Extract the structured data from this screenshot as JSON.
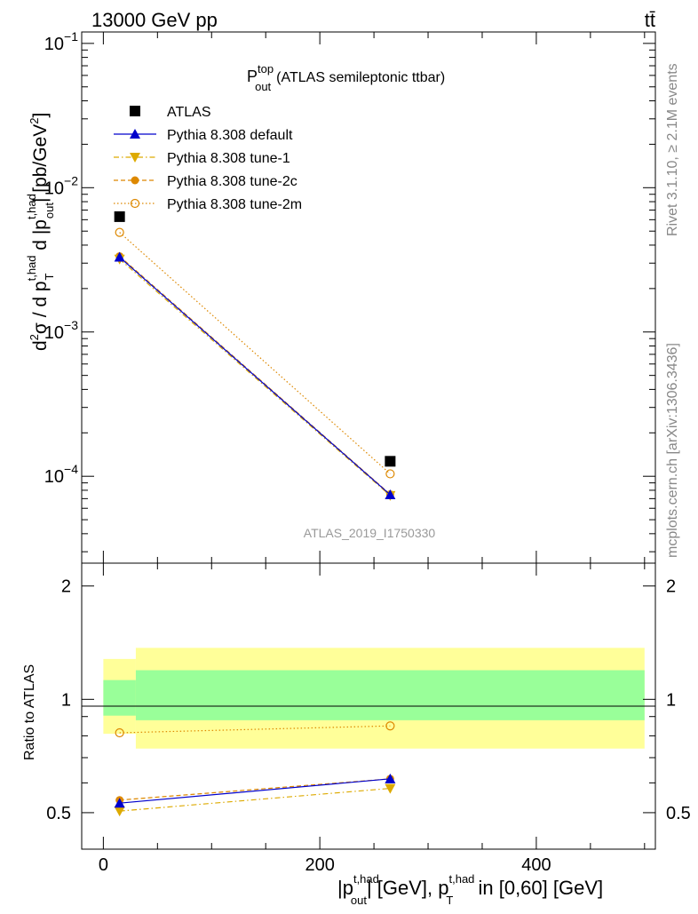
{
  "header": {
    "left": "13000 GeV pp",
    "right": "tt̄"
  },
  "plot_title": {
    "main": "P",
    "sup": "top",
    "sub": "out",
    "suffix": "(ATLAS semileptonic ttbar)"
  },
  "analysis_id": "ATLAS_2019_I1750330",
  "side_labels": {
    "rivet": "Rivet 3.1.10, ≥ 2.1M events",
    "mcplots": "mcplots.cern.ch [arXiv:1306.3436]"
  },
  "y_axis_main": {
    "part1": "d",
    "sq": "2",
    "part2": "σ / d p",
    "sup1": "t,had",
    "sub1": "T",
    "part3": " d |p",
    "sup2": "t,had",
    "sub2": "out",
    "part4": "| [pb/GeV",
    "sq2": "2",
    "part5": "]",
    "ticks": [
      {
        "base": "10",
        "exp": "−1",
        "v": 0.1
      },
      {
        "base": "10",
        "exp": "−2",
        "v": 0.01
      },
      {
        "base": "10",
        "exp": "−3",
        "v": 0.001
      },
      {
        "base": "10",
        "exp": "−4",
        "v": 0.0001
      }
    ]
  },
  "y_axis_ratio": {
    "label": "Ratio to ATLAS",
    "ticks": [
      "2",
      "1",
      "0.5"
    ]
  },
  "x_axis": {
    "part1": "|p",
    "sup1": "t,had",
    "sub1": "out",
    "part2": "| [GeV], p",
    "sup2": "t,had",
    "sub2": "T",
    "part3": " in [0,60] [GeV]",
    "ticks": [
      "0",
      "200",
      "400"
    ]
  },
  "legend": [
    {
      "label": "ATLAS",
      "color": "#000000",
      "marker": "square"
    },
    {
      "label": "Pythia 8.308 default",
      "color": "#0000cc",
      "marker": "triangle-up",
      "line": "solid"
    },
    {
      "label": "Pythia 8.308 tune-1",
      "color": "#ddaa00",
      "marker": "triangle-down",
      "line": "dashdot"
    },
    {
      "label": "Pythia 8.308 tune-2c",
      "color": "#dd8800",
      "marker": "circle",
      "line": "dashed"
    },
    {
      "label": "Pythia 8.308 tune-2m",
      "color": "#dd8800",
      "marker": "circle-open",
      "line": "dotted"
    }
  ],
  "chart_data": {
    "type": "scatter",
    "x": [
      15,
      265
    ],
    "xlim": [
      -20,
      510
    ],
    "log_y": true,
    "ylim_main": [
      2.5e-05,
      0.12
    ],
    "ylim_ratio": [
      0.4,
      2.3
    ],
    "series": [
      {
        "name": "ATLAS",
        "values": [
          0.0063,
          0.000127
        ]
      },
      {
        "name": "Pythia 8.308 default",
        "values": [
          0.0033,
          7.45e-05
        ]
      },
      {
        "name": "Pythia 8.308 tune-1",
        "values": [
          0.0032,
          7.35e-05
        ]
      },
      {
        "name": "Pythia 8.308 tune-2c",
        "values": [
          0.00335,
          7.5e-05
        ]
      },
      {
        "name": "Pythia 8.308 tune-2m",
        "values": [
          0.0049,
          0.000104
        ]
      }
    ],
    "ratio": [
      {
        "name": "Pythia 8.308 default",
        "values": [
          0.53,
          0.615
        ]
      },
      {
        "name": "Pythia 8.308 tune-1",
        "values": [
          0.505,
          0.58
        ]
      },
      {
        "name": "Pythia 8.308 tune-2c",
        "values": [
          0.54,
          0.615
        ]
      },
      {
        "name": "Pythia 8.308 tune-2m",
        "values": [
          0.815,
          0.85
        ]
      }
    ],
    "uncertainty_bands": [
      {
        "x_range": [
          0,
          30
        ],
        "inner": [
          0.905,
          1.125
        ],
        "outer": [
          0.81,
          1.28
        ]
      },
      {
        "x_range": [
          30,
          500
        ],
        "inner": [
          0.88,
          1.195
        ],
        "outer": [
          0.74,
          1.37
        ]
      }
    ]
  }
}
